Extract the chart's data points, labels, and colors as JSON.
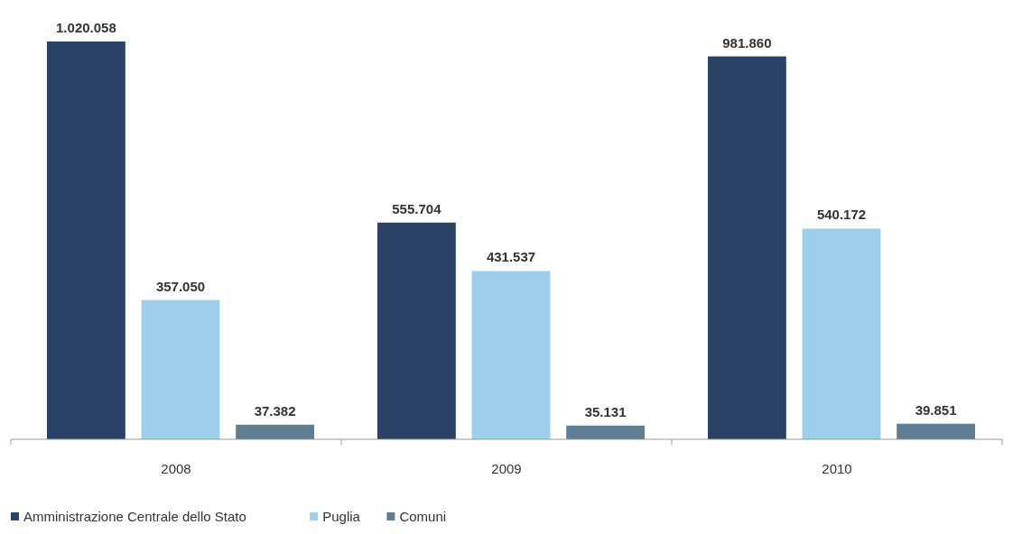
{
  "chart_data": {
    "type": "bar",
    "categories": [
      "2008",
      "2009",
      "2010"
    ],
    "series": [
      {
        "name": "Amministrazione Centrale dello Stato",
        "color": "#2a4266",
        "values": [
          1020058,
          555704,
          981860
        ],
        "value_labels": [
          "1.020.058",
          "555.704",
          "981.860"
        ]
      },
      {
        "name": "Puglia",
        "color": "#9dcfeb",
        "values": [
          357050,
          431537,
          540172
        ],
        "value_labels": [
          "357.050",
          "431.537",
          "540.172"
        ]
      },
      {
        "name": "Comuni",
        "color": "#5f7d93",
        "values": [
          37382,
          35131,
          39851
        ],
        "value_labels": [
          "37.382",
          "35.131",
          "39.851"
        ]
      }
    ],
    "legend": "bottom left"
  }
}
